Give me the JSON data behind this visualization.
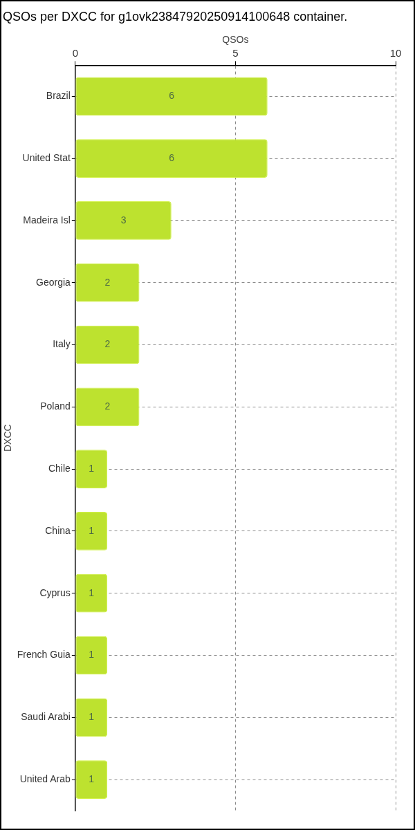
{
  "chart_data": {
    "type": "bar",
    "orientation": "horizontal",
    "title": "QSOs per DXCC for g1ovk23847920250914100648 container.",
    "xlabel": "QSOs",
    "ylabel": "DXCC",
    "categories": [
      "Brazil",
      "United Stat",
      "Madeira Isl",
      "Georgia",
      "Italy",
      "Poland",
      "Chile",
      "China",
      "Cyprus",
      "French Guia",
      "Saudi Arabi",
      "United Arab"
    ],
    "values": [
      6,
      6,
      3,
      2,
      2,
      2,
      1,
      1,
      1,
      1,
      1,
      1
    ],
    "color": "#bde22f",
    "xlim": [
      0,
      10
    ],
    "xticks": [
      0,
      5,
      10
    ],
    "grid": true,
    "data_labels": true
  }
}
